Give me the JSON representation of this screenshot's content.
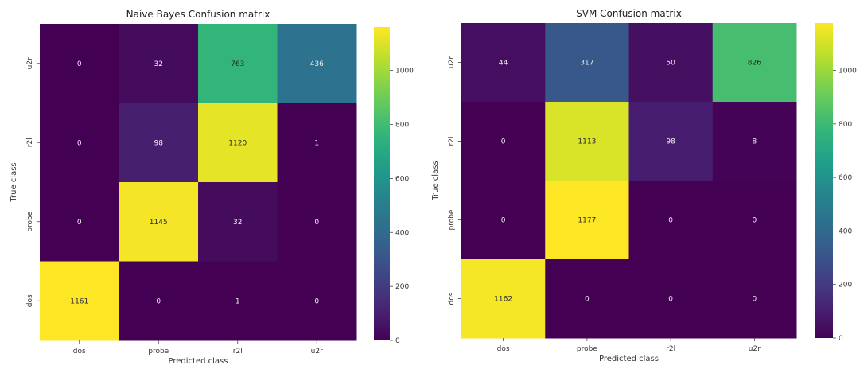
{
  "chart_data": [
    {
      "type": "heatmap",
      "title": "Naive Bayes Confusion matrix",
      "xlabel": "Predicted class",
      "ylabel": "True class",
      "x_categories": [
        "dos",
        "probe",
        "r2l",
        "u2r"
      ],
      "y_categories": [
        "u2r",
        "r2l",
        "probe",
        "dos"
      ],
      "values": [
        [
          0,
          32,
          763,
          436
        ],
        [
          0,
          98,
          1120,
          1
        ],
        [
          0,
          1145,
          32,
          0
        ],
        [
          1161,
          0,
          1,
          0
        ]
      ],
      "vmin": 0,
      "vmax": 1161,
      "colorbar_ticks": [
        0,
        200,
        400,
        600,
        800,
        1000
      ],
      "colormap": "viridis"
    },
    {
      "type": "heatmap",
      "title": "SVM Confusion matrix",
      "xlabel": "Predicted class",
      "ylabel": "True class",
      "x_categories": [
        "dos",
        "probe",
        "r2l",
        "u2r"
      ],
      "y_categories": [
        "u2r",
        "r2l",
        "probe",
        "dos"
      ],
      "values": [
        [
          44,
          317,
          50,
          826
        ],
        [
          0,
          1113,
          98,
          8
        ],
        [
          0,
          1177,
          0,
          0
        ],
        [
          1162,
          0,
          0,
          0
        ]
      ],
      "vmin": 0,
      "vmax": 1177,
      "colorbar_ticks": [
        0,
        200,
        400,
        600,
        800,
        1000
      ],
      "colormap": "viridis"
    }
  ]
}
